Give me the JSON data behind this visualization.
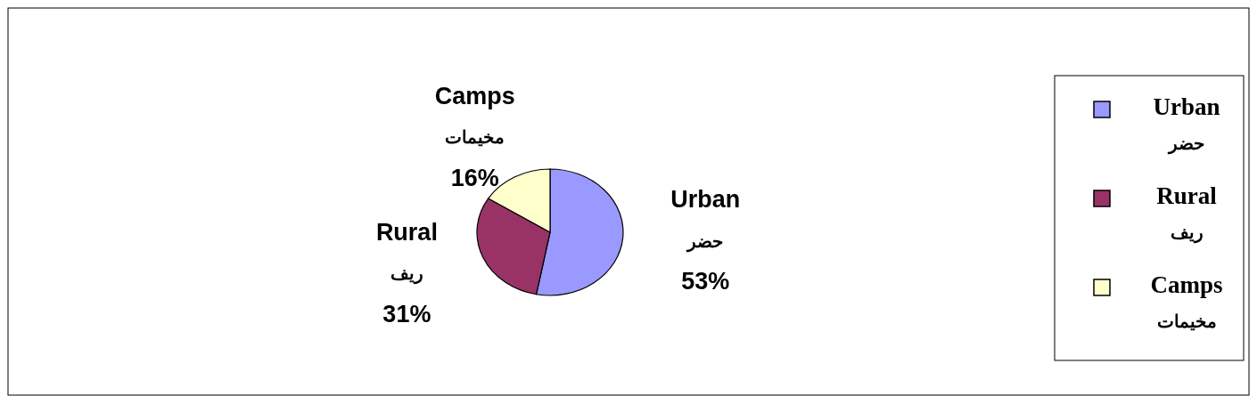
{
  "chart_data": {
    "type": "pie",
    "categories": [
      "Urban\nحضر",
      "Rural\nريف",
      "Camps\nمخيمات"
    ],
    "values": [
      53,
      31,
      16
    ],
    "value_labels": [
      "53%",
      "31%",
      "16%"
    ],
    "colors": [
      "#9999ff",
      "#993366",
      "#ffffcc"
    ],
    "legend": "right"
  }
}
